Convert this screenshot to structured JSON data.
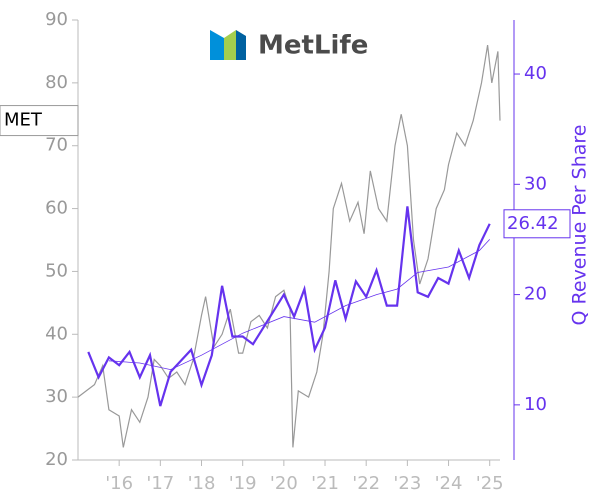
{
  "logo_text": "MetLife",
  "chart_data": {
    "type": "line",
    "xlim": [
      2015,
      2025.25
    ],
    "xticks": [
      {
        "value": 2016,
        "label": "'16"
      },
      {
        "value": 2017,
        "label": "'17"
      },
      {
        "value": 2018,
        "label": "'18"
      },
      {
        "value": 2019,
        "label": "'19"
      },
      {
        "value": 2020,
        "label": "'20"
      },
      {
        "value": 2021,
        "label": "'21"
      },
      {
        "value": 2022,
        "label": "'22"
      },
      {
        "value": 2023,
        "label": "'23"
      },
      {
        "value": 2024,
        "label": "'24"
      },
      {
        "value": 2025,
        "label": "'25"
      }
    ],
    "ylim": [
      20,
      90
    ],
    "yticks": [
      20,
      30,
      40,
      50,
      60,
      70,
      80,
      90
    ],
    "y2lim": [
      5,
      44.9
    ],
    "y2ticks": [
      10,
      20,
      30,
      40
    ],
    "y2label": "Q Revenue Per Share",
    "series": [
      {
        "name": "MET",
        "color": "#999999",
        "axis": "y",
        "x": [
          2015.0,
          2015.2,
          2015.4,
          2015.6,
          2015.75,
          2016.0,
          2016.1,
          2016.3,
          2016.5,
          2016.7,
          2016.85,
          2017.0,
          2017.2,
          2017.4,
          2017.6,
          2017.8,
          2018.0,
          2018.1,
          2018.3,
          2018.5,
          2018.7,
          2018.9,
          2019.0,
          2019.2,
          2019.4,
          2019.6,
          2019.8,
          2020.0,
          2020.15,
          2020.22,
          2020.35,
          2020.6,
          2020.8,
          2020.95,
          2021.1,
          2021.2,
          2021.4,
          2021.6,
          2021.8,
          2021.95,
          2022.1,
          2022.3,
          2022.5,
          2022.7,
          2022.85,
          2023.0,
          2023.15,
          2023.3,
          2023.5,
          2023.7,
          2023.9,
          2024.0,
          2024.2,
          2024.4,
          2024.6,
          2024.8,
          2024.95,
          2025.05,
          2025.2,
          2025.25
        ],
        "values": [
          30,
          31,
          32,
          35,
          28,
          27,
          22,
          28,
          26,
          30,
          36,
          35,
          33,
          34,
          32,
          36,
          43,
          46,
          38,
          40,
          44,
          37,
          37,
          42,
          43,
          41,
          46,
          47,
          44,
          22,
          31,
          30,
          34,
          40,
          50,
          60,
          64,
          58,
          61,
          56,
          66,
          60,
          58,
          70,
          75,
          70,
          55,
          48,
          52,
          60,
          63,
          67,
          72,
          70,
          74,
          80,
          86,
          80,
          85,
          74
        ]
      },
      {
        "color": "#6633ee",
        "axis": "y2",
        "width": 2.2,
        "x": [
          2015.25,
          2015.5,
          2015.75,
          2016.0,
          2016.25,
          2016.5,
          2016.75,
          2017.0,
          2017.25,
          2017.5,
          2017.75,
          2018.0,
          2018.25,
          2018.5,
          2018.75,
          2019.0,
          2019.25,
          2019.5,
          2019.75,
          2020.0,
          2020.25,
          2020.5,
          2020.75,
          2021.0,
          2021.25,
          2021.5,
          2021.75,
          2022.0,
          2022.25,
          2022.5,
          2022.75,
          2023.0,
          2023.25,
          2023.5,
          2023.75,
          2024.0,
          2024.25,
          2024.5,
          2024.75,
          2025.0
        ],
        "values": [
          14.8,
          12.5,
          14.3,
          13.6,
          14.8,
          12.5,
          14.5,
          9.9,
          13.0,
          14.0,
          15.0,
          11.8,
          14.5,
          20.8,
          16.2,
          16.2,
          15.5,
          17.0,
          18.5,
          20.0,
          18.0,
          20.5,
          15.0,
          17.0,
          21.3,
          17.8,
          21.2,
          19.8,
          22.2,
          19.0,
          19.0,
          28.0,
          20.2,
          19.8,
          21.5,
          21.0,
          24.0,
          21.5,
          24.5,
          26.42
        ]
      },
      {
        "color": "#6633ee",
        "axis": "y2",
        "width": 0.8,
        "x": [
          2015.75,
          2016.5,
          2017.25,
          2018.0,
          2019.0,
          2020.0,
          2020.75,
          2021.5,
          2022.25,
          2022.75,
          2023.25,
          2024.0,
          2024.75,
          2025.0
        ],
        "values": [
          14,
          13.8,
          13.2,
          14.5,
          16.5,
          18,
          17.5,
          19,
          20,
          20.5,
          22,
          22.5,
          24,
          25
        ]
      }
    ]
  }
}
